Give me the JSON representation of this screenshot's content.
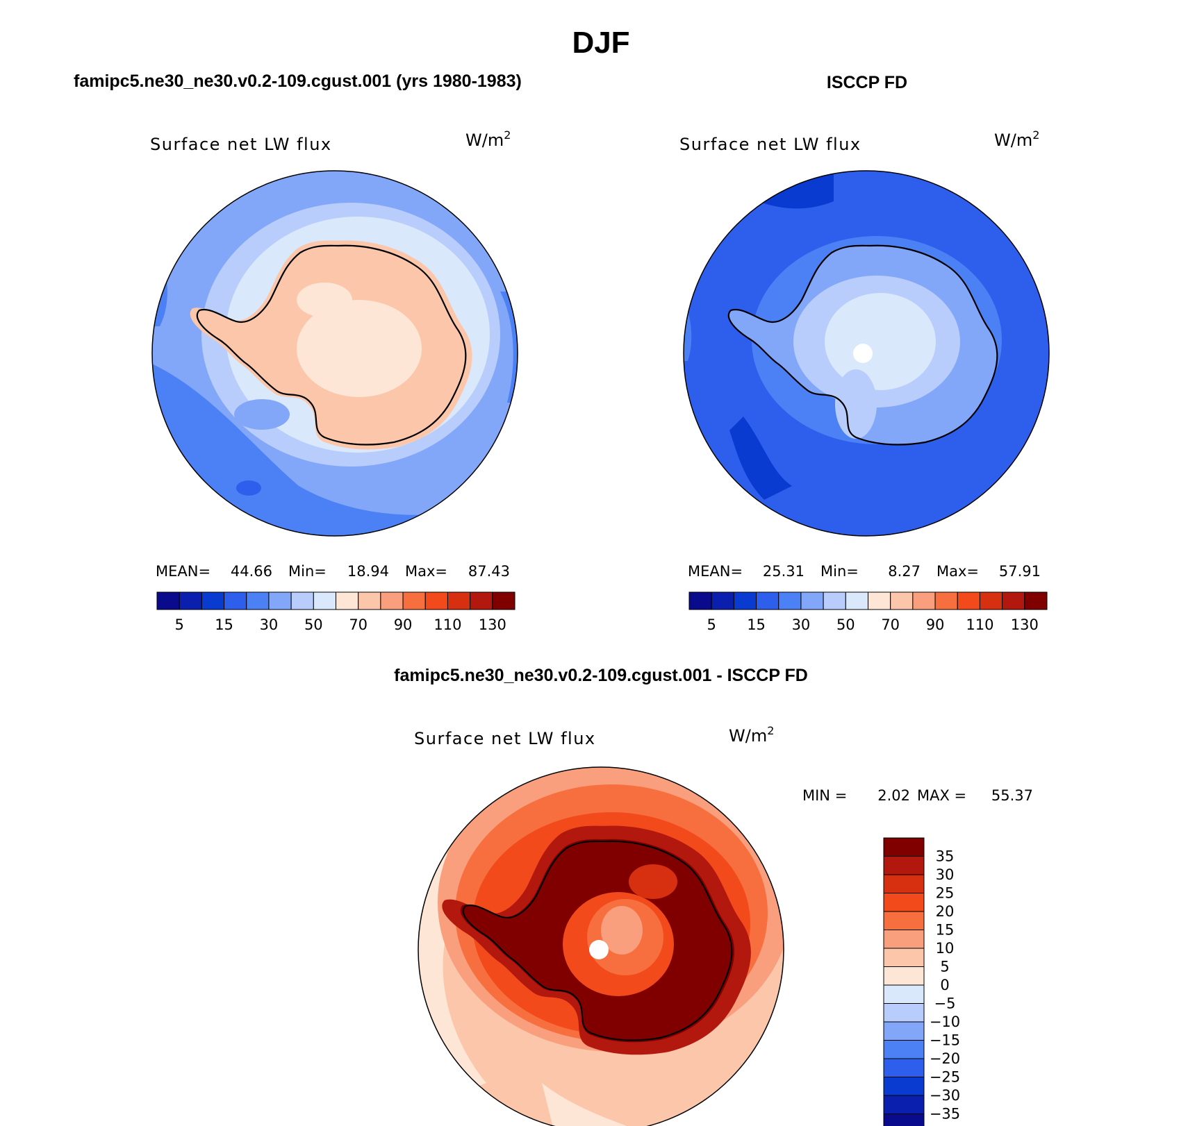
{
  "season": "DJF",
  "model_title": "famipc5.ne30_ne30.v0.2-109.cgust.001 (yrs 1980-1983)",
  "obs_title": "ISCCP FD",
  "diff_title": "famipc5.ne30_ne30.v0.2-109.cgust.001 - ISCCP FD",
  "variable": "Surface net LW flux",
  "units_base": "W/m",
  "units_exp": "2",
  "model_panel": {
    "mean_label": "MEAN=",
    "mean_value": "44.66",
    "min_label": "Min=",
    "min_value": "18.94",
    "max_label": "Max=",
    "max_value": "87.43"
  },
  "obs_panel": {
    "mean_label": "MEAN=",
    "mean_value": "25.31",
    "min_label": "Min=",
    "min_value": "8.27",
    "max_label": "Max=",
    "max_value": "57.91"
  },
  "diff_panel": {
    "min_label": "MIN =",
    "min_value": "2.02",
    "max_label": "MAX =",
    "max_value": "55.37"
  },
  "abs_colorbar": {
    "labels": [
      "5",
      "15",
      "30",
      "50",
      "70",
      "90",
      "110",
      "130"
    ],
    "colors": [
      "#0a0a8c",
      "#0b1fae",
      "#0a3bd1",
      "#2e5fec",
      "#4c80f5",
      "#82a7f8",
      "#b8cdfb",
      "#d9e8fb",
      "#fde6d6",
      "#fbc6aa",
      "#f99f7d",
      "#f76f3f",
      "#f24a1b",
      "#d63010",
      "#b2180e",
      "#800000"
    ]
  },
  "diff_colorbar": {
    "labels": [
      "35",
      "30",
      "25",
      "20",
      "15",
      "10",
      "5",
      "0",
      "−5",
      "−10",
      "−15",
      "−20",
      "−25",
      "−30",
      "−35"
    ],
    "colors": [
      "#800000",
      "#b2180e",
      "#d63010",
      "#f24a1b",
      "#f76f3f",
      "#f99f7d",
      "#fbc6aa",
      "#fde6d6",
      "#d9e8fb",
      "#b8cdfb",
      "#82a7f8",
      "#4c80f5",
      "#2e5fec",
      "#0a3bd1",
      "#0b1fae",
      "#0a0a8c"
    ]
  },
  "chart_data": [
    {
      "type": "heatmap",
      "title": "famipc5.ne30_ne30.v0.2-109.cgust.001 (yrs 1980-1983)",
      "variable": "Surface net LW flux",
      "units": "W/m2",
      "projection": "south-polar-stereographic",
      "mean": 44.66,
      "min": 18.94,
      "max": 87.43,
      "contour_levels": [
        5,
        10,
        15,
        20,
        30,
        40,
        50,
        60,
        70,
        80,
        90,
        100,
        110,
        120,
        130
      ]
    },
    {
      "type": "heatmap",
      "title": "ISCCP FD",
      "variable": "Surface net LW flux",
      "units": "W/m2",
      "projection": "south-polar-stereographic",
      "mean": 25.31,
      "min": 8.27,
      "max": 57.91,
      "contour_levels": [
        5,
        10,
        15,
        20,
        30,
        40,
        50,
        60,
        70,
        80,
        90,
        100,
        110,
        120,
        130
      ]
    },
    {
      "type": "heatmap",
      "title": "famipc5.ne30_ne30.v0.2-109.cgust.001 - ISCCP FD",
      "variable": "Surface net LW flux",
      "units": "W/m2",
      "projection": "south-polar-stereographic",
      "min": 2.02,
      "max": 55.37,
      "contour_levels": [
        -35,
        -30,
        -25,
        -20,
        -15,
        -10,
        -5,
        0,
        5,
        10,
        15,
        20,
        25,
        30,
        35
      ]
    }
  ]
}
